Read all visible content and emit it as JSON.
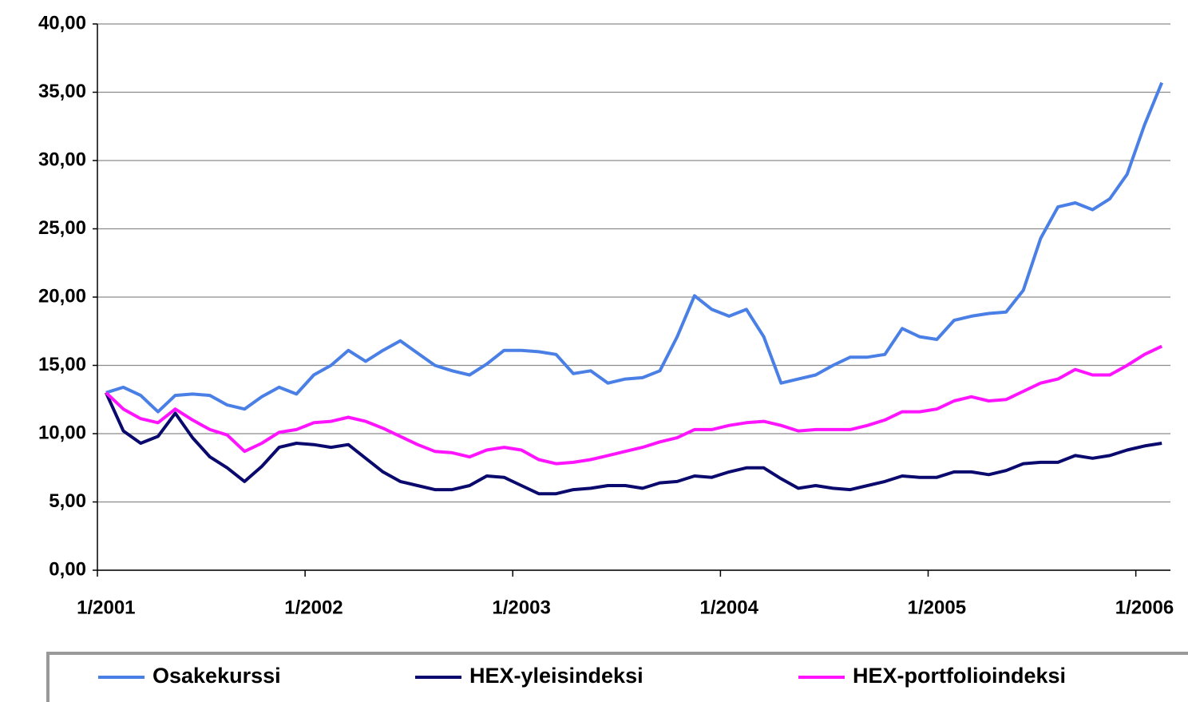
{
  "chart_data": {
    "type": "line",
    "categories": [
      "1/2001",
      null,
      null,
      null,
      null,
      null,
      null,
      null,
      null,
      null,
      null,
      null,
      "1/2002",
      null,
      null,
      null,
      null,
      null,
      null,
      null,
      null,
      null,
      null,
      null,
      "1/2003",
      null,
      null,
      null,
      null,
      null,
      null,
      null,
      null,
      null,
      null,
      null,
      "1/2004",
      null,
      null,
      null,
      null,
      null,
      null,
      null,
      null,
      null,
      null,
      null,
      "1/2005",
      null,
      null,
      null,
      null,
      null,
      null,
      null,
      null,
      null,
      null,
      null,
      "1/2006",
      null
    ],
    "series": [
      {
        "name": "Osakekurssi",
        "color": "#4a7fe6",
        "values": [
          13.0,
          13.4,
          12.8,
          11.6,
          12.8,
          12.9,
          12.8,
          12.1,
          11.8,
          12.7,
          13.4,
          12.9,
          14.3,
          15.0,
          16.1,
          15.3,
          16.1,
          16.8,
          15.9,
          15.0,
          14.6,
          14.3,
          15.1,
          16.1,
          16.1,
          16.0,
          15.8,
          14.4,
          14.6,
          13.7,
          14.0,
          14.1,
          14.6,
          17.1,
          20.1,
          19.1,
          18.6,
          19.1,
          17.1,
          13.7,
          14.0,
          14.3,
          15.0,
          15.6,
          15.6,
          15.8,
          17.7,
          17.1,
          16.9,
          18.3,
          18.6,
          18.8,
          18.9,
          20.5,
          24.3,
          26.6,
          26.9,
          26.4,
          27.2,
          29.0,
          32.6,
          35.7
        ]
      },
      {
        "name": "HEX-yleisindeksi",
        "color": "#0a0a6e",
        "values": [
          13.0,
          10.2,
          9.3,
          9.8,
          11.5,
          9.7,
          8.3,
          7.5,
          6.5,
          7.6,
          9.0,
          9.3,
          9.2,
          9.0,
          9.2,
          8.2,
          7.2,
          6.5,
          6.2,
          5.9,
          5.9,
          6.2,
          6.9,
          6.8,
          6.2,
          5.6,
          5.6,
          5.9,
          6.0,
          6.2,
          6.2,
          6.0,
          6.4,
          6.5,
          6.9,
          6.8,
          7.2,
          7.5,
          7.5,
          6.7,
          6.0,
          6.2,
          6.0,
          5.9,
          6.2,
          6.5,
          6.9,
          6.8,
          6.8,
          7.2,
          7.2,
          7.0,
          7.3,
          7.8,
          7.9,
          7.9,
          8.4,
          8.2,
          8.4,
          8.8,
          9.1,
          9.3
        ]
      },
      {
        "name": "HEX-portfolioindeksi",
        "color": "#ff14ff",
        "values": [
          13.0,
          11.8,
          11.1,
          10.8,
          11.8,
          11.0,
          10.3,
          9.9,
          8.7,
          9.3,
          10.1,
          10.3,
          10.8,
          10.9,
          11.2,
          10.9,
          10.4,
          9.8,
          9.2,
          8.7,
          8.6,
          8.3,
          8.8,
          9.0,
          8.8,
          8.1,
          7.8,
          7.9,
          8.1,
          8.4,
          8.7,
          9.0,
          9.4,
          9.7,
          10.3,
          10.3,
          10.6,
          10.8,
          10.9,
          10.6,
          10.2,
          10.3,
          10.3,
          10.3,
          10.6,
          11.0,
          11.6,
          11.6,
          11.8,
          12.4,
          12.7,
          12.4,
          12.5,
          13.1,
          13.7,
          14.0,
          14.7,
          14.3,
          14.3,
          15.0,
          15.8,
          16.4
        ]
      }
    ],
    "ylim": [
      0,
      40
    ],
    "yticks": [
      {
        "value": 0,
        "label": "0,00"
      },
      {
        "value": 5,
        "label": "5,00"
      },
      {
        "value": 10,
        "label": "10,00"
      },
      {
        "value": 15,
        "label": "15,00"
      },
      {
        "value": 20,
        "label": "20,00"
      },
      {
        "value": 25,
        "label": "25,00"
      },
      {
        "value": 30,
        "label": "30,00"
      },
      {
        "value": 35,
        "label": "35,00"
      },
      {
        "value": 40,
        "label": "40,00"
      }
    ],
    "grid": true,
    "legend": "bottom"
  }
}
